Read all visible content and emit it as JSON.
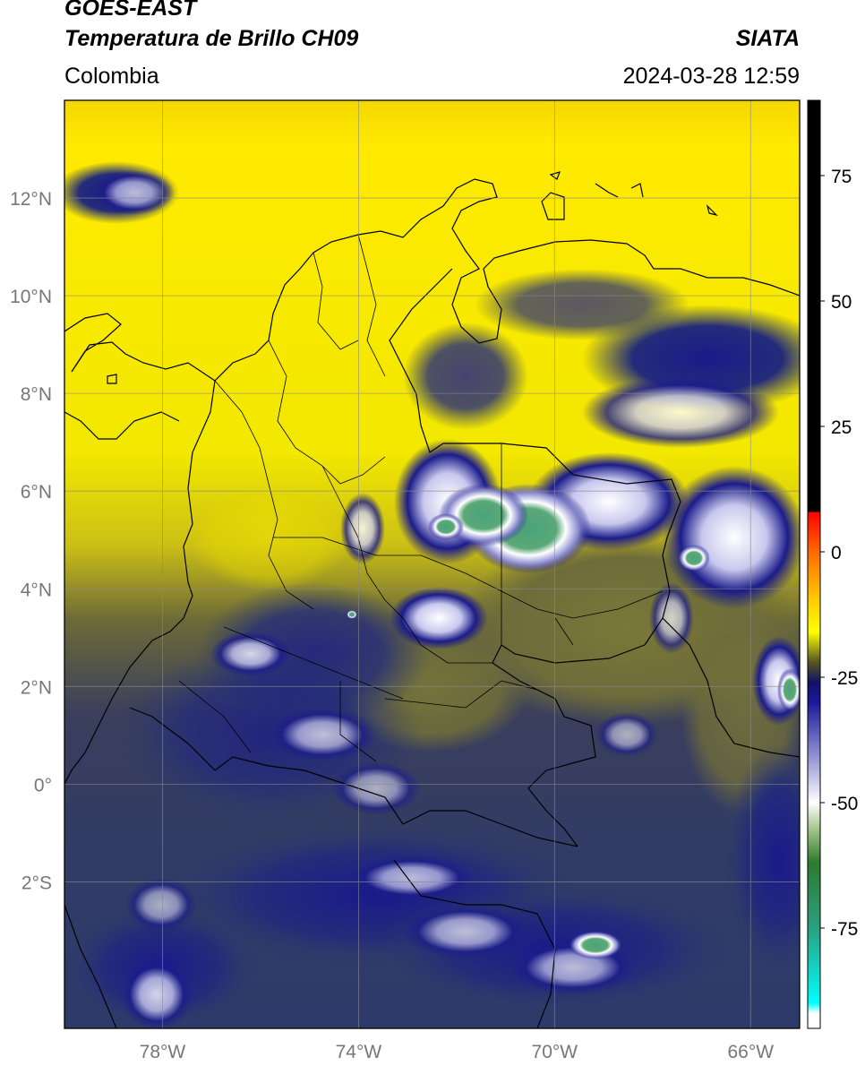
{
  "header": {
    "satellite": "GOES-EAST",
    "product": "Temperatura de Brillo CH09",
    "agency": "SIATA",
    "region": "Colombia",
    "datetime": "2024-03-28 12:59"
  },
  "map": {
    "lon_range": [
      -80,
      -65
    ],
    "lat_range": [
      -5,
      14
    ],
    "lat_ticks": [
      {
        "value": 12,
        "label": "12°N"
      },
      {
        "value": 10,
        "label": "10°N"
      },
      {
        "value": 8,
        "label": "8°N"
      },
      {
        "value": 6,
        "label": "6°N"
      },
      {
        "value": 4,
        "label": "4°N"
      },
      {
        "value": 2,
        "label": "2°N"
      },
      {
        "value": 0,
        "label": "0°"
      },
      {
        "value": -2,
        "label": "2°S"
      }
    ],
    "lon_ticks": [
      {
        "value": -78,
        "label": "78°W"
      },
      {
        "value": -74,
        "label": "74°W"
      },
      {
        "value": -70,
        "label": "70°W"
      },
      {
        "value": -66,
        "label": "66°W"
      }
    ],
    "colors": {
      "warm": "#f6e800",
      "mid": "#6f6f35",
      "cool": "#2d3b6e",
      "cold": "#1c1c8a",
      "very_cold": "#ffffff",
      "coldest": "#4aa37a"
    }
  },
  "colorbar": {
    "range": [
      -95,
      90
    ],
    "ticks": [
      {
        "value": 75,
        "label": "75"
      },
      {
        "value": 50,
        "label": "50"
      },
      {
        "value": 25,
        "label": "25"
      },
      {
        "value": 0,
        "label": "0"
      },
      {
        "value": -25,
        "label": "-25"
      },
      {
        "value": -50,
        "label": "-50"
      },
      {
        "value": -75,
        "label": "-75"
      }
    ],
    "stops": [
      {
        "value": 90,
        "color": "#000000"
      },
      {
        "value": 8,
        "color": "#000000"
      },
      {
        "value": 7.9,
        "color": "#ff0000"
      },
      {
        "value": 0,
        "color": "#ff6a00"
      },
      {
        "value": -10,
        "color": "#ffd000"
      },
      {
        "value": -16,
        "color": "#ffff00"
      },
      {
        "value": -22,
        "color": "#555522"
      },
      {
        "value": -26,
        "color": "#111166"
      },
      {
        "value": -30,
        "color": "#1a1a9a"
      },
      {
        "value": -42,
        "color": "#a0a0d8"
      },
      {
        "value": -50,
        "color": "#ffffff"
      },
      {
        "value": -55,
        "color": "#a8c890"
      },
      {
        "value": -62,
        "color": "#2e7a2e"
      },
      {
        "value": -75,
        "color": "#2aa080"
      },
      {
        "value": -90,
        "color": "#00ffff"
      },
      {
        "value": -92,
        "color": "#ffffff"
      },
      {
        "value": -95,
        "color": "#ffffff"
      }
    ]
  }
}
